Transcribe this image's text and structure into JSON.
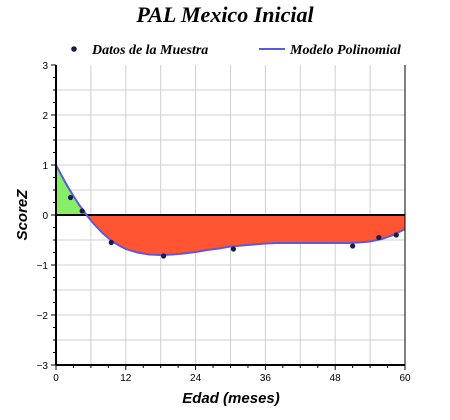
{
  "chart_data": {
    "type": "line",
    "title": "PAL Mexico Inicial",
    "xlabel": "Edad (meses)",
    "ylabel": "ScoreZ",
    "xlim": [
      0,
      60
    ],
    "ylim": [
      -3,
      3
    ],
    "xticks": [
      0,
      12,
      24,
      36,
      48,
      60
    ],
    "yticks": [
      -3,
      -2,
      -1,
      0,
      1,
      2,
      3
    ],
    "grid": true,
    "legend_position": "top",
    "series": [
      {
        "name": "Datos de la Muestra",
        "kind": "scatter",
        "color": "#1a1a4e",
        "x": [
          2.5,
          4.5,
          9.5,
          18.5,
          30.5,
          51,
          55.5,
          58.5
        ],
        "y": [
          0.35,
          0.08,
          -0.55,
          -0.82,
          -0.68,
          -0.62,
          -0.45,
          -0.4
        ]
      },
      {
        "name": "Modelo Polinomial",
        "kind": "line",
        "color": "#5a5ae0",
        "x": [
          0,
          1,
          2,
          3,
          4,
          5,
          6,
          7,
          8,
          9,
          10,
          11,
          12,
          14,
          16,
          18,
          20,
          22,
          24,
          26,
          28,
          30,
          32,
          34,
          36,
          38,
          40,
          42,
          44,
          46,
          48,
          50,
          52,
          54,
          56,
          58,
          60
        ],
        "y": [
          1.0,
          0.78,
          0.57,
          0.38,
          0.2,
          0.04,
          -0.11,
          -0.24,
          -0.36,
          -0.46,
          -0.55,
          -0.62,
          -0.68,
          -0.75,
          -0.79,
          -0.8,
          -0.79,
          -0.77,
          -0.74,
          -0.7,
          -0.67,
          -0.63,
          -0.61,
          -0.59,
          -0.57,
          -0.56,
          -0.56,
          -0.56,
          -0.56,
          -0.56,
          -0.56,
          -0.56,
          -0.55,
          -0.53,
          -0.48,
          -0.4,
          -0.28
        ]
      }
    ],
    "fill_above_color": "#88ee66",
    "fill_below_color": "#ff5533",
    "zero_line_color": "#000000"
  }
}
